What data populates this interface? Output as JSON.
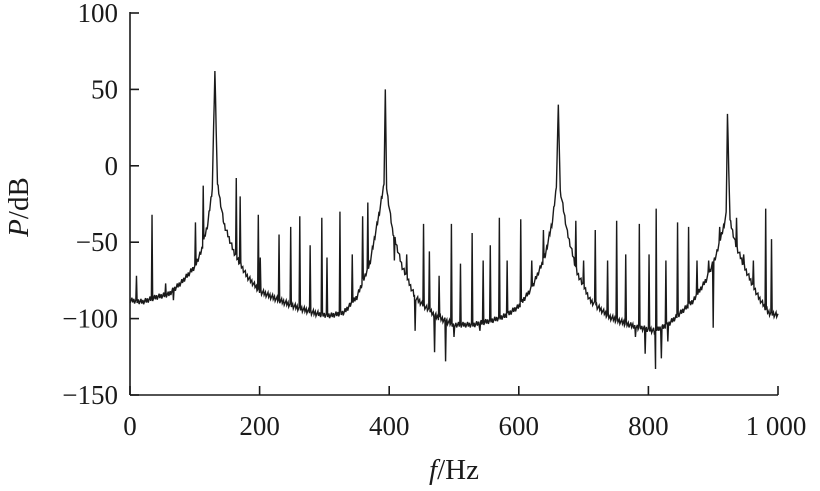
{
  "chart_data": {
    "type": "line",
    "title": "",
    "xlabel_symbol": "f",
    "xlabel_unit": "/Hz",
    "ylabel_symbol": "P",
    "ylabel_unit": "/dB",
    "xlim": [
      0,
      1000
    ],
    "ylim": [
      -150,
      100
    ],
    "x_ticks": [
      0,
      200,
      400,
      600,
      800,
      1000
    ],
    "x_tick_labels": [
      "0",
      "200",
      "400",
      "600",
      "800",
      "1 000"
    ],
    "y_ticks": [
      -150,
      -100,
      -50,
      0,
      50,
      100
    ],
    "y_tick_labels": [
      "−150",
      "−100",
      "−50",
      "0",
      "50",
      "100"
    ],
    "grid": false,
    "line_color": "#1a1a1a",
    "baseline_points": [
      [
        0,
        -88
      ],
      [
        20,
        -89
      ],
      [
        40,
        -86
      ],
      [
        60,
        -84
      ],
      [
        80,
        -76
      ],
      [
        100,
        -66
      ],
      [
        110,
        -56
      ],
      [
        120,
        -38
      ],
      [
        127,
        -15
      ],
      [
        131,
        62
      ],
      [
        135,
        -12
      ],
      [
        145,
        -38
      ],
      [
        160,
        -56
      ],
      [
        180,
        -72
      ],
      [
        200,
        -82
      ],
      [
        230,
        -88
      ],
      [
        260,
        -93
      ],
      [
        290,
        -97
      ],
      [
        310,
        -98
      ],
      [
        330,
        -96
      ],
      [
        350,
        -86
      ],
      [
        370,
        -64
      ],
      [
        385,
        -30
      ],
      [
        392,
        -12
      ],
      [
        394,
        50
      ],
      [
        396,
        -15
      ],
      [
        405,
        -42
      ],
      [
        420,
        -66
      ],
      [
        440,
        -86
      ],
      [
        470,
        -98
      ],
      [
        500,
        -104
      ],
      [
        530,
        -104
      ],
      [
        560,
        -101
      ],
      [
        580,
        -98
      ],
      [
        600,
        -92
      ],
      [
        620,
        -80
      ],
      [
        640,
        -60
      ],
      [
        652,
        -36
      ],
      [
        658,
        -14
      ],
      [
        661,
        40
      ],
      [
        664,
        -16
      ],
      [
        675,
        -44
      ],
      [
        690,
        -70
      ],
      [
        710,
        -88
      ],
      [
        740,
        -99
      ],
      [
        770,
        -104
      ],
      [
        790,
        -106
      ],
      [
        810,
        -108
      ],
      [
        830,
        -104
      ],
      [
        850,
        -96
      ],
      [
        870,
        -88
      ],
      [
        890,
        -74
      ],
      [
        905,
        -58
      ],
      [
        915,
        -42
      ],
      [
        920,
        -32
      ],
      [
        922,
        34
      ],
      [
        926,
        -36
      ],
      [
        935,
        -52
      ],
      [
        950,
        -68
      ],
      [
        970,
        -86
      ],
      [
        985,
        -96
      ],
      [
        1000,
        -98
      ]
    ],
    "spikes": [
      [
        10,
        -72
      ],
      [
        34,
        -32
      ],
      [
        55,
        -77
      ],
      [
        67,
        -88
      ],
      [
        101,
        -37
      ],
      [
        113,
        -13
      ],
      [
        164,
        -8
      ],
      [
        170,
        -20
      ],
      [
        198,
        -32
      ],
      [
        201,
        -60
      ],
      [
        230,
        -45
      ],
      [
        248,
        -40
      ],
      [
        262,
        -33
      ],
      [
        278,
        -52
      ],
      [
        296,
        -34
      ],
      [
        304,
        -60
      ],
      [
        324,
        -30
      ],
      [
        343,
        -58
      ],
      [
        359,
        -33
      ],
      [
        367,
        -24
      ],
      [
        408,
        -62
      ],
      [
        427,
        -58
      ],
      [
        453,
        -38
      ],
      [
        462,
        -56
      ],
      [
        477,
        -72
      ],
      [
        496,
        -38
      ],
      [
        510,
        -64
      ],
      [
        528,
        -44
      ],
      [
        545,
        -62
      ],
      [
        556,
        -52
      ],
      [
        570,
        -34
      ],
      [
        582,
        -62
      ],
      [
        603,
        -35
      ],
      [
        620,
        -62
      ],
      [
        638,
        -42
      ],
      [
        688,
        -36
      ],
      [
        700,
        -62
      ],
      [
        718,
        -42
      ],
      [
        737,
        -62
      ],
      [
        751,
        -36
      ],
      [
        765,
        -58
      ],
      [
        786,
        -38
      ],
      [
        801,
        -58
      ],
      [
        812,
        -28
      ],
      [
        827,
        -62
      ],
      [
        845,
        -37
      ],
      [
        862,
        -40
      ],
      [
        875,
        -62
      ],
      [
        893,
        -62
      ],
      [
        910,
        -40
      ],
      [
        936,
        -34
      ],
      [
        947,
        -58
      ],
      [
        962,
        -62
      ],
      [
        981,
        -28
      ],
      [
        990,
        -48
      ]
    ],
    "dips": [
      [
        440,
        -108
      ],
      [
        470,
        -122
      ],
      [
        487,
        -128
      ],
      [
        500,
        -112
      ],
      [
        540,
        -108
      ],
      [
        780,
        -112
      ],
      [
        795,
        -123
      ],
      [
        811,
        -133
      ],
      [
        820,
        -126
      ],
      [
        830,
        -115
      ],
      [
        900,
        -106
      ]
    ]
  }
}
